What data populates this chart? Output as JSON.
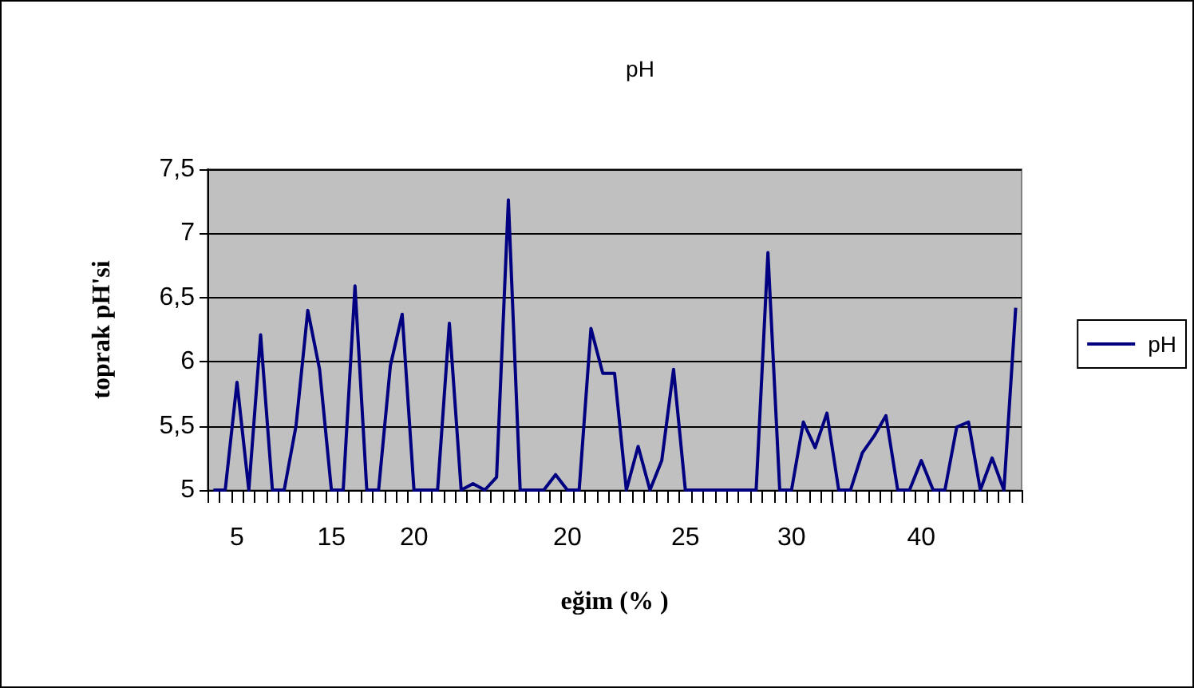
{
  "chart_data": {
    "type": "line",
    "title": "pH",
    "xlabel": "eğim (% )",
    "ylabel": "toprak pH'si",
    "categories": [
      null,
      null,
      "5",
      null,
      null,
      null,
      null,
      null,
      null,
      null,
      "15",
      null,
      null,
      null,
      null,
      null,
      null,
      "20",
      null,
      null,
      null,
      null,
      null,
      null,
      null,
      null,
      null,
      null,
      null,
      null,
      "20",
      null,
      null,
      null,
      null,
      null,
      null,
      null,
      null,
      null,
      "25",
      null,
      null,
      null,
      null,
      null,
      null,
      null,
      null,
      "30",
      null,
      null,
      null,
      null,
      null,
      null,
      null,
      null,
      null,
      null,
      "40",
      null,
      null,
      null,
      null,
      null,
      null,
      null,
      null
    ],
    "series": [
      {
        "name": "pH",
        "color": "#000080",
        "values": [
          5,
          5,
          5.84,
          5,
          6.21,
          5,
          5,
          5.5,
          6.4,
          5.94,
          5,
          5,
          6.59,
          5,
          5,
          5.97,
          6.37,
          5,
          5,
          5,
          6.3,
          5,
          5.05,
          5,
          5.1,
          7.26,
          5,
          5,
          5,
          5.12,
          5,
          5,
          6.26,
          5.91,
          5.91,
          5,
          5.34,
          5,
          5.23,
          5.94,
          5,
          5,
          5,
          5,
          5,
          5,
          5,
          6.85,
          5,
          5,
          5.53,
          5.33,
          5.6,
          5,
          5,
          5.29,
          5.42,
          5.58,
          5,
          5,
          5.23,
          5,
          5,
          5.49,
          5.53,
          5,
          5.25,
          5,
          6.42
        ]
      }
    ],
    "ylim": [
      5,
      7.5
    ],
    "yticks": [
      5,
      {
        "value": 5.5,
        "label": "5,5"
      },
      6,
      {
        "value": 6.5,
        "label": "6,5"
      },
      7,
      {
        "value": 7.5,
        "label": "7,5"
      }
    ],
    "grid": "y",
    "legend": "right",
    "marker": "none",
    "line_style": "solid"
  }
}
